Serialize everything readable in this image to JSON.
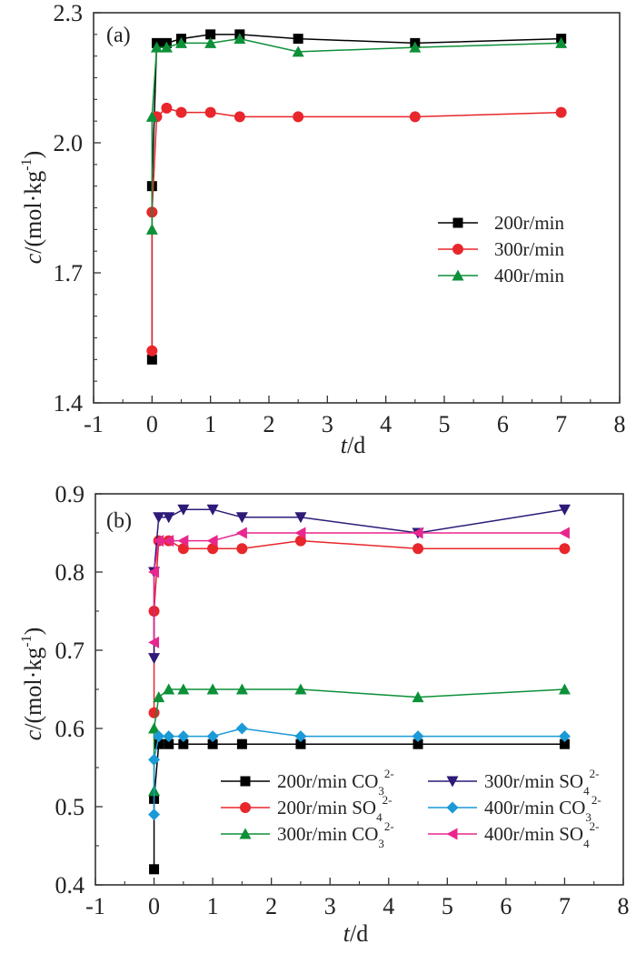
{
  "chart_data": [
    {
      "type": "line",
      "panel_label": "(a)",
      "title": "",
      "xlabel_italic": "t",
      "xlabel_rest": "/d",
      "ylabel_italic": "c",
      "ylabel_rest": "/(mol·kg",
      "ylabel_sup": "-1",
      "ylabel_close": ")",
      "xlim": [
        -1,
        8
      ],
      "ylim": [
        1.4,
        2.3
      ],
      "xticks": [
        -1,
        0,
        1,
        2,
        3,
        4,
        5,
        6,
        7,
        8
      ],
      "xtick_labels": [
        "-1",
        "0",
        "1",
        "2",
        "3",
        "4",
        "5",
        "6",
        "7",
        "8"
      ],
      "yticks": [
        1.4,
        1.7,
        2.0,
        2.3
      ],
      "ytick_labels": [
        "1.4",
        "1.7",
        "2.0",
        "2.3"
      ],
      "legend_position": "center-right",
      "series": [
        {
          "name": "200r/min",
          "sub": "",
          "sup": "",
          "color": "#000000",
          "marker": "square",
          "x": [
            0,
            0,
            0.08,
            0.25,
            0.5,
            1,
            1.5,
            2.5,
            4.5,
            7
          ],
          "y": [
            1.5,
            1.9,
            2.23,
            2.23,
            2.24,
            2.25,
            2.25,
            2.24,
            2.23,
            2.24
          ]
        },
        {
          "name": "300r/min",
          "sub": "",
          "sup": "",
          "color": "#e8262b",
          "marker": "circle",
          "x": [
            0,
            0,
            0.08,
            0.25,
            0.5,
            1,
            1.5,
            2.5,
            4.5,
            7
          ],
          "y": [
            1.52,
            1.84,
            2.06,
            2.08,
            2.07,
            2.07,
            2.06,
            2.06,
            2.06,
            2.07
          ]
        },
        {
          "name": "400r/min",
          "sub": "",
          "sup": "",
          "color": "#0c9038",
          "marker": "triangle-up",
          "x": [
            0,
            0,
            0.08,
            0.25,
            0.5,
            1,
            1.5,
            2.5,
            4.5,
            7
          ],
          "y": [
            1.8,
            2.06,
            2.22,
            2.22,
            2.23,
            2.23,
            2.24,
            2.21,
            2.22,
            2.23
          ]
        }
      ]
    },
    {
      "type": "line",
      "panel_label": "(b)",
      "title": "",
      "xlabel_italic": "t",
      "xlabel_rest": "/d",
      "ylabel_italic": "c",
      "ylabel_rest": "/(mol·kg",
      "ylabel_sup": "-1",
      "ylabel_close": ")",
      "xlim": [
        -1,
        8
      ],
      "ylim": [
        0.4,
        0.9
      ],
      "xticks": [
        -1,
        0,
        1,
        2,
        3,
        4,
        5,
        6,
        7,
        8
      ],
      "xtick_labels": [
        "-1",
        "0",
        "1",
        "2",
        "3",
        "4",
        "5",
        "6",
        "7",
        "8"
      ],
      "yticks": [
        0.4,
        0.5,
        0.6,
        0.7,
        0.8,
        0.9
      ],
      "ytick_labels": [
        "0.4",
        "0.5",
        "0.6",
        "0.7",
        "0.8",
        "0.9"
      ],
      "legend_position": "bottom-right",
      "series": [
        {
          "name": "200r/min  CO",
          "sub": "3",
          "sup": "2-",
          "color": "#000000",
          "marker": "square",
          "x": [
            0,
            0,
            0.08,
            0.25,
            0.5,
            1,
            1.5,
            2.5,
            4.5,
            7
          ],
          "y": [
            0.42,
            0.51,
            0.58,
            0.58,
            0.58,
            0.58,
            0.58,
            0.58,
            0.58,
            0.58
          ]
        },
        {
          "name": "200r/min  SO",
          "sub": "4",
          "sup": "2-",
          "color": "#e8262b",
          "marker": "circle",
          "x": [
            0,
            0,
            0.08,
            0.25,
            0.5,
            1,
            1.5,
            2.5,
            4.5,
            7
          ],
          "y": [
            0.62,
            0.75,
            0.84,
            0.84,
            0.83,
            0.83,
            0.83,
            0.84,
            0.83,
            0.83
          ]
        },
        {
          "name": "300r/min  CO",
          "sub": "3",
          "sup": "2-",
          "color": "#0c9038",
          "marker": "triangle-up",
          "x": [
            0,
            0,
            0.08,
            0.25,
            0.5,
            1,
            1.5,
            2.5,
            4.5,
            7
          ],
          "y": [
            0.52,
            0.6,
            0.64,
            0.65,
            0.65,
            0.65,
            0.65,
            0.65,
            0.64,
            0.65
          ]
        },
        {
          "name": "300r/min  SO",
          "sub": "4",
          "sup": "2-",
          "color": "#2e1a78",
          "marker": "triangle-down",
          "x": [
            0,
            0,
            0.08,
            0.25,
            0.5,
            1,
            1.5,
            2.5,
            4.5,
            7
          ],
          "y": [
            0.69,
            0.8,
            0.87,
            0.87,
            0.88,
            0.88,
            0.87,
            0.87,
            0.85,
            0.88
          ]
        },
        {
          "name": "400r/min  CO",
          "sub": "3",
          "sup": "2-",
          "color": "#1a9ad6",
          "marker": "diamond",
          "x": [
            0,
            0,
            0.08,
            0.25,
            0.5,
            1,
            1.5,
            2.5,
            4.5,
            7
          ],
          "y": [
            0.49,
            0.56,
            0.59,
            0.59,
            0.59,
            0.59,
            0.6,
            0.59,
            0.59,
            0.59
          ]
        },
        {
          "name": "400r/min  SO",
          "sub": "4",
          "sup": "2-",
          "color": "#e8278e",
          "marker": "triangle-left",
          "x": [
            0,
            0,
            0.08,
            0.25,
            0.5,
            1,
            1.5,
            2.5,
            4.5,
            7
          ],
          "y": [
            0.71,
            0.8,
            0.84,
            0.84,
            0.84,
            0.84,
            0.85,
            0.85,
            0.85,
            0.85
          ]
        }
      ]
    }
  ]
}
